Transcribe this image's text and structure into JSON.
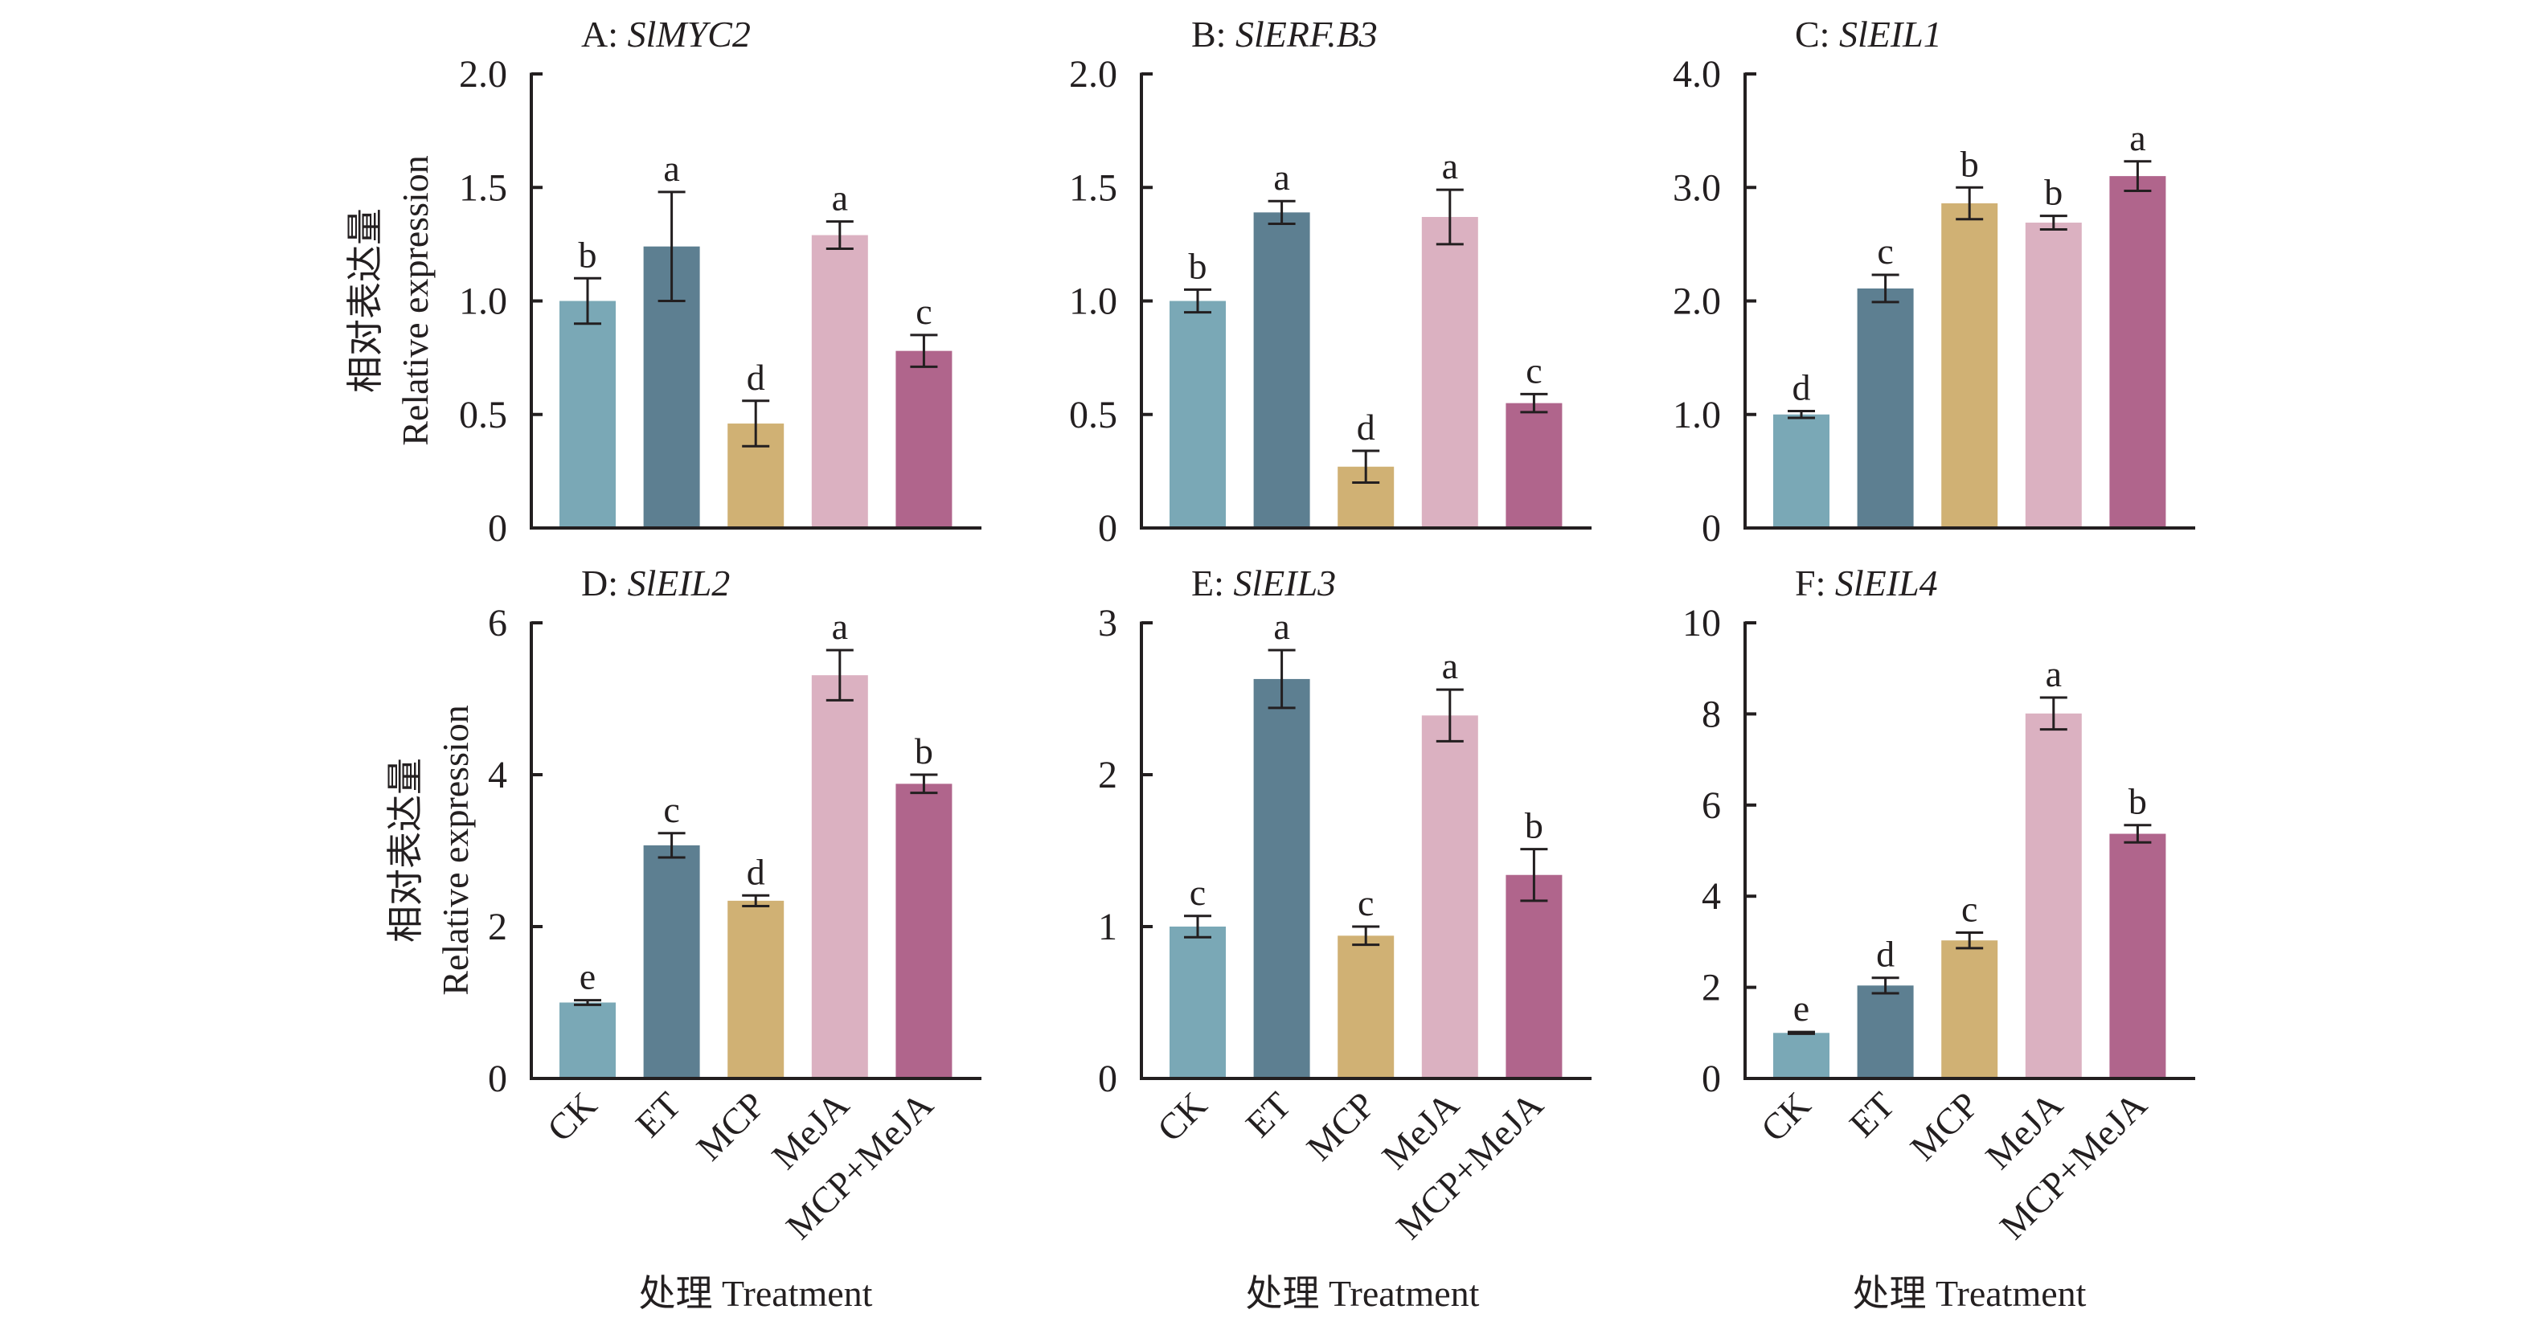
{
  "figure": {
    "ylabel_cn": "相对表达量",
    "ylabel_en": "Relative expression",
    "xlabel": "处理 Treatment"
  },
  "colors": {
    "CK": "#7AA8B6",
    "ET": "#5D7F91",
    "MCP": "#D0B174",
    "MeJA": "#DBB1C1",
    "MCP+MeJA": "#B0658C",
    "axis": "#231f20"
  },
  "chart_data": [
    {
      "type": "bar",
      "panel": "A",
      "title_prefix": "A: ",
      "title_gene": "SlMYC2",
      "categories": [
        "CK",
        "ET",
        "MCP",
        "MeJA",
        "MCP+MeJA"
      ],
      "values": [
        1.0,
        1.24,
        0.46,
        1.29,
        0.78
      ],
      "errors": [
        0.1,
        0.24,
        0.1,
        0.06,
        0.07
      ],
      "letters": [
        "b",
        "a",
        "d",
        "a",
        "c"
      ],
      "ylim": [
        0,
        2.0
      ],
      "yticks": [
        0,
        0.5,
        1.0,
        1.5,
        2.0
      ],
      "ytick_labels": [
        "0",
        "0.5",
        "1.0",
        "1.5",
        "2.0"
      ],
      "ylabel": "相对表达量 Relative expression",
      "xlabel": "",
      "grid": false
    },
    {
      "type": "bar",
      "panel": "B",
      "title_prefix": "B: ",
      "title_gene": "SlERF.B3",
      "categories": [
        "CK",
        "ET",
        "MCP",
        "MeJA",
        "MCP+MeJA"
      ],
      "values": [
        1.0,
        1.39,
        0.27,
        1.37,
        0.55
      ],
      "errors": [
        0.05,
        0.05,
        0.07,
        0.12,
        0.04
      ],
      "letters": [
        "b",
        "a",
        "d",
        "a",
        "c"
      ],
      "ylim": [
        0,
        2.0
      ],
      "yticks": [
        0,
        0.5,
        1.0,
        1.5,
        2.0
      ],
      "ytick_labels": [
        "0",
        "0.5",
        "1.0",
        "1.5",
        "2.0"
      ],
      "ylabel": "",
      "xlabel": "",
      "grid": false
    },
    {
      "type": "bar",
      "panel": "C",
      "title_prefix": "C: ",
      "title_gene": "SlEIL1",
      "categories": [
        "CK",
        "ET",
        "MCP",
        "MeJA",
        "MCP+MeJA"
      ],
      "values": [
        1.0,
        2.11,
        2.86,
        2.69,
        3.1
      ],
      "errors": [
        0.03,
        0.12,
        0.14,
        0.06,
        0.13
      ],
      "letters": [
        "d",
        "c",
        "b",
        "b",
        "a"
      ],
      "ylim": [
        0,
        4.0
      ],
      "yticks": [
        0,
        1.0,
        2.0,
        3.0,
        4.0
      ],
      "ytick_labels": [
        "0",
        "1.0",
        "2.0",
        "3.0",
        "4.0"
      ],
      "ylabel": "",
      "xlabel": "",
      "grid": false
    },
    {
      "type": "bar",
      "panel": "D",
      "title_prefix": "D: ",
      "title_gene": "SlEIL2",
      "categories": [
        "CK",
        "ET",
        "MCP",
        "MeJA",
        "MCP+MeJA"
      ],
      "values": [
        1.0,
        3.07,
        2.34,
        5.31,
        3.88
      ],
      "errors": [
        0.03,
        0.16,
        0.07,
        0.33,
        0.12
      ],
      "letters": [
        "e",
        "c",
        "d",
        "a",
        "b"
      ],
      "ylim": [
        0,
        6
      ],
      "yticks": [
        0,
        2,
        4,
        6
      ],
      "ytick_labels": [
        "0",
        "2",
        "4",
        "6"
      ],
      "ylabel": "相对表达量 Relative expression",
      "xlabel": "处理 Treatment",
      "grid": false
    },
    {
      "type": "bar",
      "panel": "E",
      "title_prefix": "E: ",
      "title_gene": "SlEIL3",
      "categories": [
        "CK",
        "ET",
        "MCP",
        "MeJA",
        "MCP+MeJA"
      ],
      "values": [
        1.0,
        2.63,
        0.94,
        2.39,
        1.34
      ],
      "errors": [
        0.07,
        0.19,
        0.06,
        0.17,
        0.17
      ],
      "letters": [
        "c",
        "a",
        "c",
        "a",
        "b"
      ],
      "ylim": [
        0,
        3
      ],
      "yticks": [
        0,
        1,
        2,
        3
      ],
      "ytick_labels": [
        "0",
        "1",
        "2",
        "3"
      ],
      "ylabel": "",
      "xlabel": "处理 Treatment",
      "grid": false
    },
    {
      "type": "bar",
      "panel": "F",
      "title_prefix": "F: ",
      "title_gene": "SlEIL4",
      "categories": [
        "CK",
        "ET",
        "MCP",
        "MeJA",
        "MCP+MeJA"
      ],
      "values": [
        1.0,
        2.04,
        3.03,
        8.01,
        5.37
      ],
      "errors": [
        0.02,
        0.17,
        0.17,
        0.35,
        0.19
      ],
      "letters": [
        "e",
        "d",
        "c",
        "a",
        "b"
      ],
      "ylim": [
        0,
        10
      ],
      "yticks": [
        0,
        2,
        4,
        6,
        8,
        10
      ],
      "ytick_labels": [
        "0",
        "2",
        "4",
        "6",
        "8",
        "10"
      ],
      "ylabel": "",
      "xlabel": "处理 Treatment",
      "grid": false
    }
  ]
}
